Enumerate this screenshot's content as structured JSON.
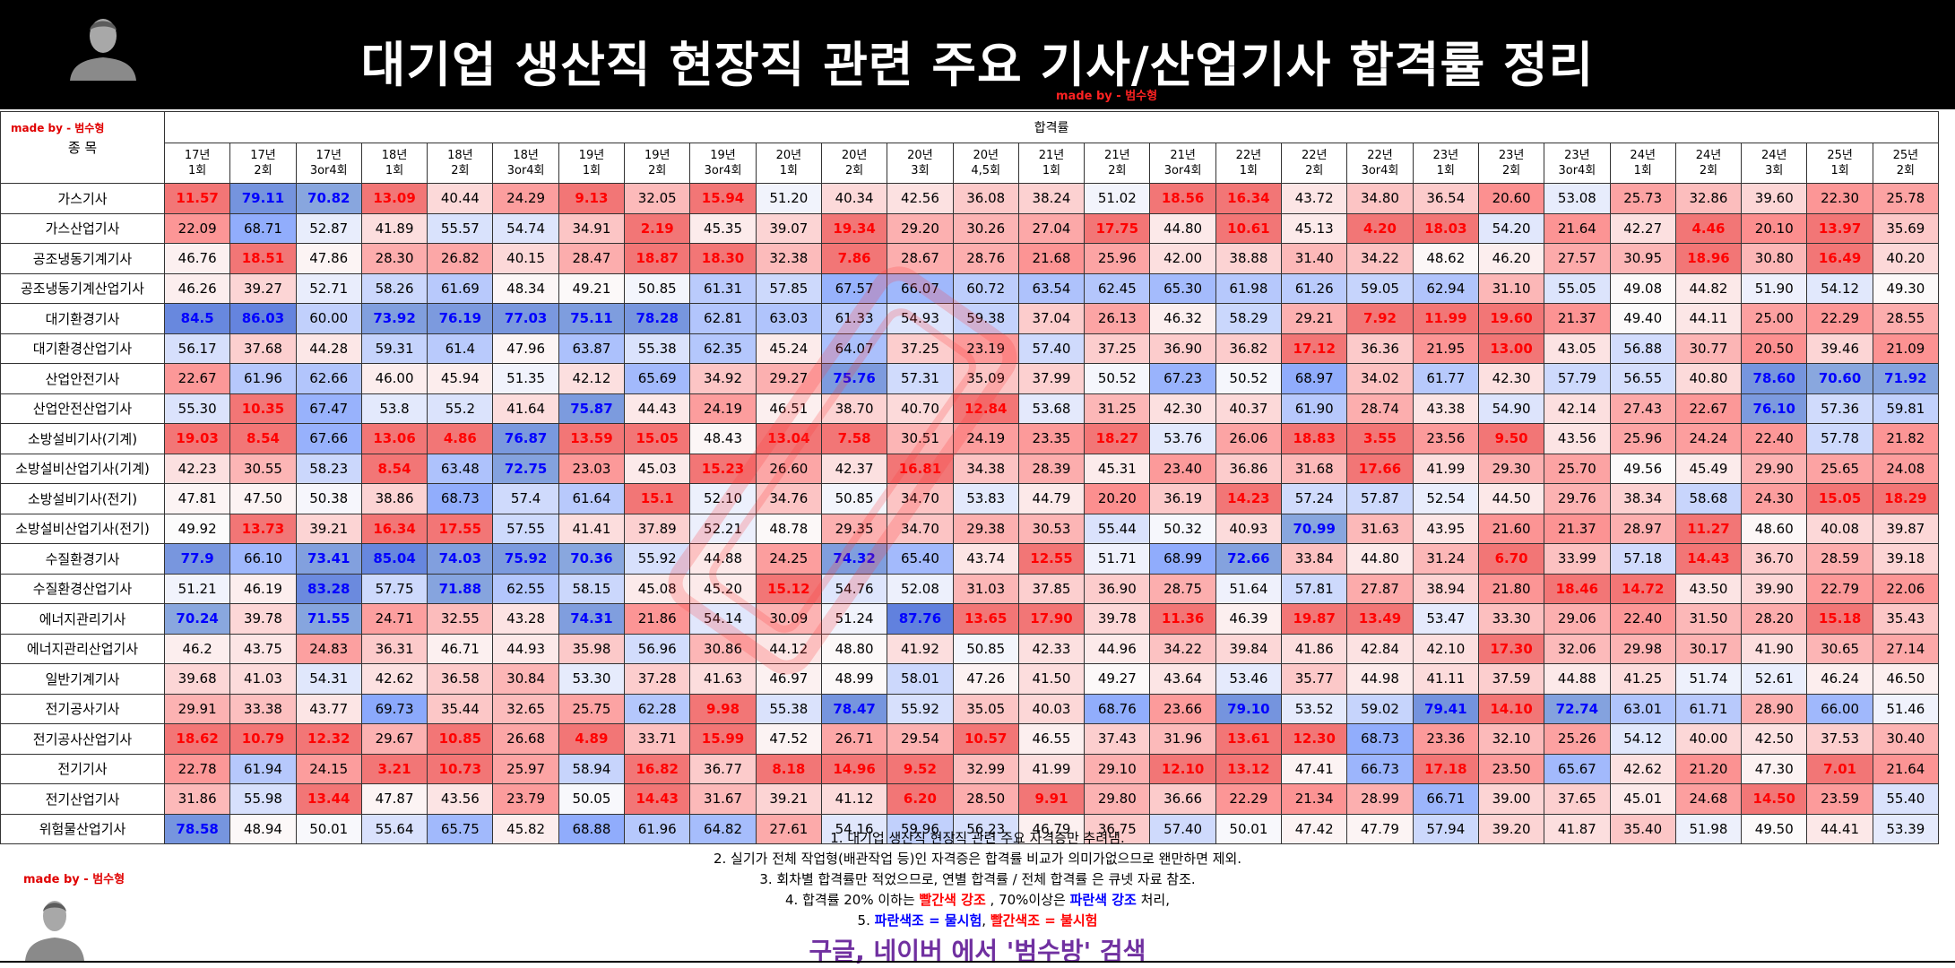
{
  "title": "대기업 생산직 현장직 관련 주요 기사/산업기사 합격률 정리",
  "made_by": "made by - 범수형",
  "table": {
    "group_header": "합격률",
    "name_header": "종 목",
    "columns": [
      "17년 1회",
      "17년 2회",
      "17년 3or4회",
      "18년 1회",
      "18년 2회",
      "18년 3or4회",
      "19년 1회",
      "19년 2회",
      "19년 3or4회",
      "20년 1회",
      "20년 2회",
      "20년 3회",
      "20년 4,5회",
      "21년 1회",
      "21년 2회",
      "21년 3or4회",
      "22년 1회",
      "22년 2회",
      "22년 3or4회",
      "23년 1회",
      "23년 2회",
      "23년 3or4회",
      "24년 1회",
      "24년 2회",
      "24년 3회",
      "25년 1회",
      "25년 2회"
    ],
    "rows": [
      {
        "name": "가스기사",
        "values": [
          "11.57",
          "79.11",
          "70.82",
          "13.09",
          "40.44",
          "24.29",
          "9.13",
          "32.05",
          "15.94",
          "51.20",
          "40.34",
          "42.56",
          "36.08",
          "38.24",
          "51.02",
          "18.56",
          "16.34",
          "43.72",
          "34.80",
          "36.54",
          "20.60",
          "53.08",
          "25.73",
          "32.86",
          "39.60",
          "22.30",
          "25.78"
        ]
      },
      {
        "name": "가스산업기사",
        "values": [
          "22.09",
          "68.71",
          "52.87",
          "41.89",
          "55.57",
          "54.74",
          "34.91",
          "2.19",
          "45.35",
          "39.07",
          "19.34",
          "29.20",
          "30.26",
          "27.04",
          "17.75",
          "44.80",
          "10.61",
          "45.13",
          "4.20",
          "18.03",
          "54.20",
          "21.64",
          "42.27",
          "4.46",
          "20.10",
          "13.97",
          "35.69"
        ]
      },
      {
        "name": "공조냉동기계기사",
        "values": [
          "46.76",
          "18.51",
          "47.86",
          "28.30",
          "26.82",
          "40.15",
          "28.47",
          "18.87",
          "18.30",
          "32.38",
          "7.86",
          "28.67",
          "28.76",
          "21.68",
          "25.96",
          "42.00",
          "38.88",
          "31.40",
          "34.22",
          "48.62",
          "46.20",
          "27.57",
          "30.95",
          "18.96",
          "30.80",
          "16.49",
          "40.20"
        ]
      },
      {
        "name": "공조냉동기계산업기사",
        "values": [
          "46.26",
          "39.27",
          "52.71",
          "58.26",
          "61.69",
          "48.34",
          "49.21",
          "50.85",
          "61.31",
          "57.85",
          "67.57",
          "66.07",
          "60.72",
          "63.54",
          "62.45",
          "65.30",
          "61.98",
          "61.26",
          "59.05",
          "62.94",
          "31.10",
          "55.05",
          "49.08",
          "44.82",
          "51.90",
          "54.12",
          "49.30"
        ]
      },
      {
        "name": "대기환경기사",
        "values": [
          "84.5",
          "86.03",
          "60.00",
          "73.92",
          "76.19",
          "77.03",
          "75.11",
          "78.28",
          "62.81",
          "63.03",
          "61.33",
          "54.93",
          "59.38",
          "37.04",
          "26.13",
          "46.32",
          "58.29",
          "29.21",
          "7.92",
          "11.99",
          "19.60",
          "21.37",
          "49.40",
          "44.11",
          "25.00",
          "22.29",
          "28.55"
        ]
      },
      {
        "name": "대기환경산업기사",
        "values": [
          "56.17",
          "37.68",
          "44.28",
          "59.31",
          "61.4",
          "47.96",
          "63.87",
          "55.38",
          "62.35",
          "45.24",
          "64.07",
          "37.25",
          "23.19",
          "57.40",
          "37.25",
          "36.90",
          "36.82",
          "17.12",
          "36.36",
          "21.95",
          "13.00",
          "43.05",
          "56.88",
          "30.77",
          "20.50",
          "39.46",
          "21.09"
        ]
      },
      {
        "name": "산업안전기사",
        "values": [
          "22.67",
          "61.96",
          "62.66",
          "46.00",
          "45.94",
          "51.35",
          "42.12",
          "65.69",
          "34.92",
          "29.27",
          "75.76",
          "57.31",
          "35.09",
          "37.99",
          "50.52",
          "67.23",
          "50.52",
          "68.97",
          "34.02",
          "61.77",
          "42.30",
          "57.79",
          "56.55",
          "40.80",
          "78.60",
          "70.60",
          "71.92"
        ]
      },
      {
        "name": "산업안전산업기사",
        "values": [
          "55.30",
          "10.35",
          "67.47",
          "53.8",
          "55.2",
          "41.64",
          "75.87",
          "44.43",
          "24.19",
          "46.51",
          "38.70",
          "40.70",
          "12.84",
          "53.68",
          "31.25",
          "42.30",
          "40.37",
          "61.90",
          "28.74",
          "43.38",
          "54.90",
          "42.14",
          "27.43",
          "22.67",
          "76.10",
          "57.36",
          "59.81"
        ]
      },
      {
        "name": "소방설비기사(기계)",
        "values": [
          "19.03",
          "8.54",
          "67.66",
          "13.06",
          "4.86",
          "76.87",
          "13.59",
          "15.05",
          "48.43",
          "13.04",
          "7.58",
          "30.51",
          "24.19",
          "23.35",
          "18.27",
          "53.76",
          "26.06",
          "18.83",
          "3.55",
          "23.56",
          "9.50",
          "43.56",
          "25.96",
          "24.24",
          "22.40",
          "57.78",
          "21.82"
        ]
      },
      {
        "name": "소방설비산업기사(기계)",
        "values": [
          "42.23",
          "30.55",
          "58.23",
          "8.54",
          "63.48",
          "72.75",
          "23.03",
          "45.03",
          "15.23",
          "26.60",
          "42.37",
          "16.81",
          "34.38",
          "28.39",
          "45.31",
          "23.40",
          "36.86",
          "31.68",
          "17.66",
          "41.99",
          "29.30",
          "25.70",
          "49.56",
          "45.49",
          "29.90",
          "25.65",
          "24.08"
        ]
      },
      {
        "name": "소방설비기사(전기)",
        "values": [
          "47.81",
          "47.50",
          "50.38",
          "38.86",
          "68.73",
          "57.4",
          "61.64",
          "15.1",
          "52.10",
          "34.76",
          "50.85",
          "34.70",
          "53.83",
          "44.79",
          "20.20",
          "36.19",
          "14.23",
          "57.24",
          "57.87",
          "52.54",
          "44.50",
          "29.76",
          "38.34",
          "58.68",
          "24.30",
          "15.05",
          "18.29"
        ]
      },
      {
        "name": "소방설비산업기사(전기)",
        "values": [
          "49.92",
          "13.73",
          "39.21",
          "16.34",
          "17.55",
          "57.55",
          "41.41",
          "37.89",
          "52.21",
          "48.78",
          "29.35",
          "34.70",
          "29.38",
          "30.53",
          "55.44",
          "50.32",
          "40.93",
          "70.99",
          "31.63",
          "43.95",
          "21.60",
          "21.37",
          "28.97",
          "11.27",
          "48.60",
          "40.08",
          "39.87"
        ]
      },
      {
        "name": "수질환경기사",
        "values": [
          "77.9",
          "66.10",
          "73.41",
          "85.04",
          "74.03",
          "75.92",
          "70.36",
          "55.92",
          "44.88",
          "24.25",
          "74.32",
          "65.40",
          "43.74",
          "12.55",
          "51.71",
          "68.99",
          "72.66",
          "33.84",
          "44.80",
          "31.24",
          "6.70",
          "33.99",
          "57.18",
          "14.43",
          "36.70",
          "28.59",
          "39.18"
        ]
      },
      {
        "name": "수질환경산업기사",
        "values": [
          "51.21",
          "46.19",
          "83.28",
          "57.75",
          "71.88",
          "62.55",
          "58.15",
          "45.08",
          "45.20",
          "15.12",
          "54.76",
          "52.08",
          "31.03",
          "37.85",
          "36.90",
          "28.75",
          "51.64",
          "57.81",
          "27.87",
          "38.94",
          "21.80",
          "18.46",
          "14.72",
          "43.50",
          "39.90",
          "22.79",
          "22.06"
        ]
      },
      {
        "name": "에너지관리기사",
        "values": [
          "70.24",
          "39.78",
          "71.55",
          "24.71",
          "32.55",
          "43.28",
          "74.31",
          "21.86",
          "54.14",
          "30.09",
          "51.24",
          "87.76",
          "13.65",
          "17.90",
          "39.78",
          "11.36",
          "46.39",
          "19.87",
          "13.49",
          "53.47",
          "33.30",
          "29.06",
          "22.40",
          "31.50",
          "28.20",
          "15.18",
          "35.43"
        ]
      },
      {
        "name": "에너지관리산업기사",
        "values": [
          "46.2",
          "43.75",
          "24.83",
          "36.31",
          "46.71",
          "44.93",
          "35.98",
          "56.96",
          "30.86",
          "44.12",
          "48.80",
          "41.92",
          "50.85",
          "42.33",
          "44.96",
          "34.22",
          "39.84",
          "41.86",
          "42.84",
          "42.10",
          "17.30",
          "32.06",
          "29.98",
          "30.17",
          "41.90",
          "30.65",
          "27.14"
        ]
      },
      {
        "name": "일반기계기사",
        "values": [
          "39.68",
          "41.03",
          "54.31",
          "42.62",
          "36.58",
          "30.84",
          "53.30",
          "37.28",
          "41.63",
          "46.97",
          "48.99",
          "58.01",
          "47.26",
          "41.50",
          "49.27",
          "43.64",
          "53.46",
          "35.77",
          "44.98",
          "41.11",
          "37.59",
          "44.88",
          "41.25",
          "51.74",
          "52.61",
          "46.24",
          "46.50"
        ]
      },
      {
        "name": "전기공사기사",
        "values": [
          "29.91",
          "33.38",
          "43.77",
          "69.73",
          "35.44",
          "32.65",
          "25.75",
          "62.28",
          "9.98",
          "55.38",
          "78.47",
          "55.92",
          "35.05",
          "40.03",
          "68.76",
          "23.66",
          "79.10",
          "53.52",
          "59.02",
          "79.41",
          "14.10",
          "72.74",
          "63.01",
          "61.71",
          "28.90",
          "66.00",
          "51.46"
        ]
      },
      {
        "name": "전기공사산업기사",
        "values": [
          "18.62",
          "10.79",
          "12.32",
          "29.67",
          "10.85",
          "26.68",
          "4.89",
          "33.71",
          "15.99",
          "47.52",
          "26.71",
          "29.54",
          "10.57",
          "46.55",
          "37.43",
          "31.96",
          "13.61",
          "12.30",
          "68.73",
          "23.36",
          "32.10",
          "25.26",
          "54.12",
          "40.00",
          "42.50",
          "37.53",
          "30.40"
        ]
      },
      {
        "name": "전기기사",
        "values": [
          "22.78",
          "61.94",
          "24.15",
          "3.21",
          "10.73",
          "25.97",
          "58.94",
          "16.82",
          "36.77",
          "8.18",
          "14.96",
          "9.52",
          "32.99",
          "41.99",
          "29.10",
          "12.10",
          "13.12",
          "47.41",
          "66.73",
          "17.18",
          "23.50",
          "65.67",
          "42.62",
          "21.20",
          "47.30",
          "7.01",
          "21.64"
        ]
      },
      {
        "name": "전기산업기사",
        "values": [
          "31.86",
          "55.98",
          "13.44",
          "47.87",
          "43.56",
          "23.79",
          "50.05",
          "14.43",
          "31.67",
          "39.21",
          "41.12",
          "6.20",
          "28.50",
          "9.91",
          "29.80",
          "36.66",
          "22.29",
          "21.34",
          "28.99",
          "66.71",
          "39.00",
          "37.65",
          "45.01",
          "24.68",
          "14.50",
          "23.59",
          "55.40"
        ]
      },
      {
        "name": "위험물산업기사",
        "values": [
          "78.58",
          "48.94",
          "50.01",
          "55.64",
          "65.75",
          "45.82",
          "68.88",
          "61.96",
          "64.82",
          "27.61",
          "54.16",
          "59.96",
          "56.23",
          "46.79",
          "36.75",
          "57.40",
          "50.01",
          "47.42",
          "47.79",
          "57.94",
          "39.20",
          "41.87",
          "35.40",
          "51.98",
          "49.50",
          "44.41",
          "53.39"
        ]
      }
    ]
  },
  "notes": {
    "n1": "1. 대기업 생산직 현장직 관련 주요 자격증만 추려냄.",
    "n2": "2. 실기가 전체 작업형(배관작업 등)인 자격증은 합격률 비교가 의미가없으므로 왠만하면 제외.",
    "n3": "3. 회차별 합격률만 적었으므로, 연별 합격률 / 전체 합격률 은 큐넷 자료 참조.",
    "n4_a": "4. 합격률 20% 이하는 ",
    "n4_b": "빨간색 강조",
    "n4_c": " , 70%이상은 ",
    "n4_d": "파란색 강조",
    "n4_e": " 처리,",
    "n5_a": "5. ",
    "n5_b": "파란색조 = 물시험",
    "n5_c": ", ",
    "n5_d": "빨간색조 = 불시험"
  },
  "search_text": "구글, 네이버 에서 '범수방' 검색",
  "icons": {
    "avatar": "person-avatar-icon"
  },
  "colors": {
    "red_strong": "#ff0000",
    "blue_strong": "#0000ff",
    "search": "#7030a0",
    "header_bg": "#000000"
  }
}
